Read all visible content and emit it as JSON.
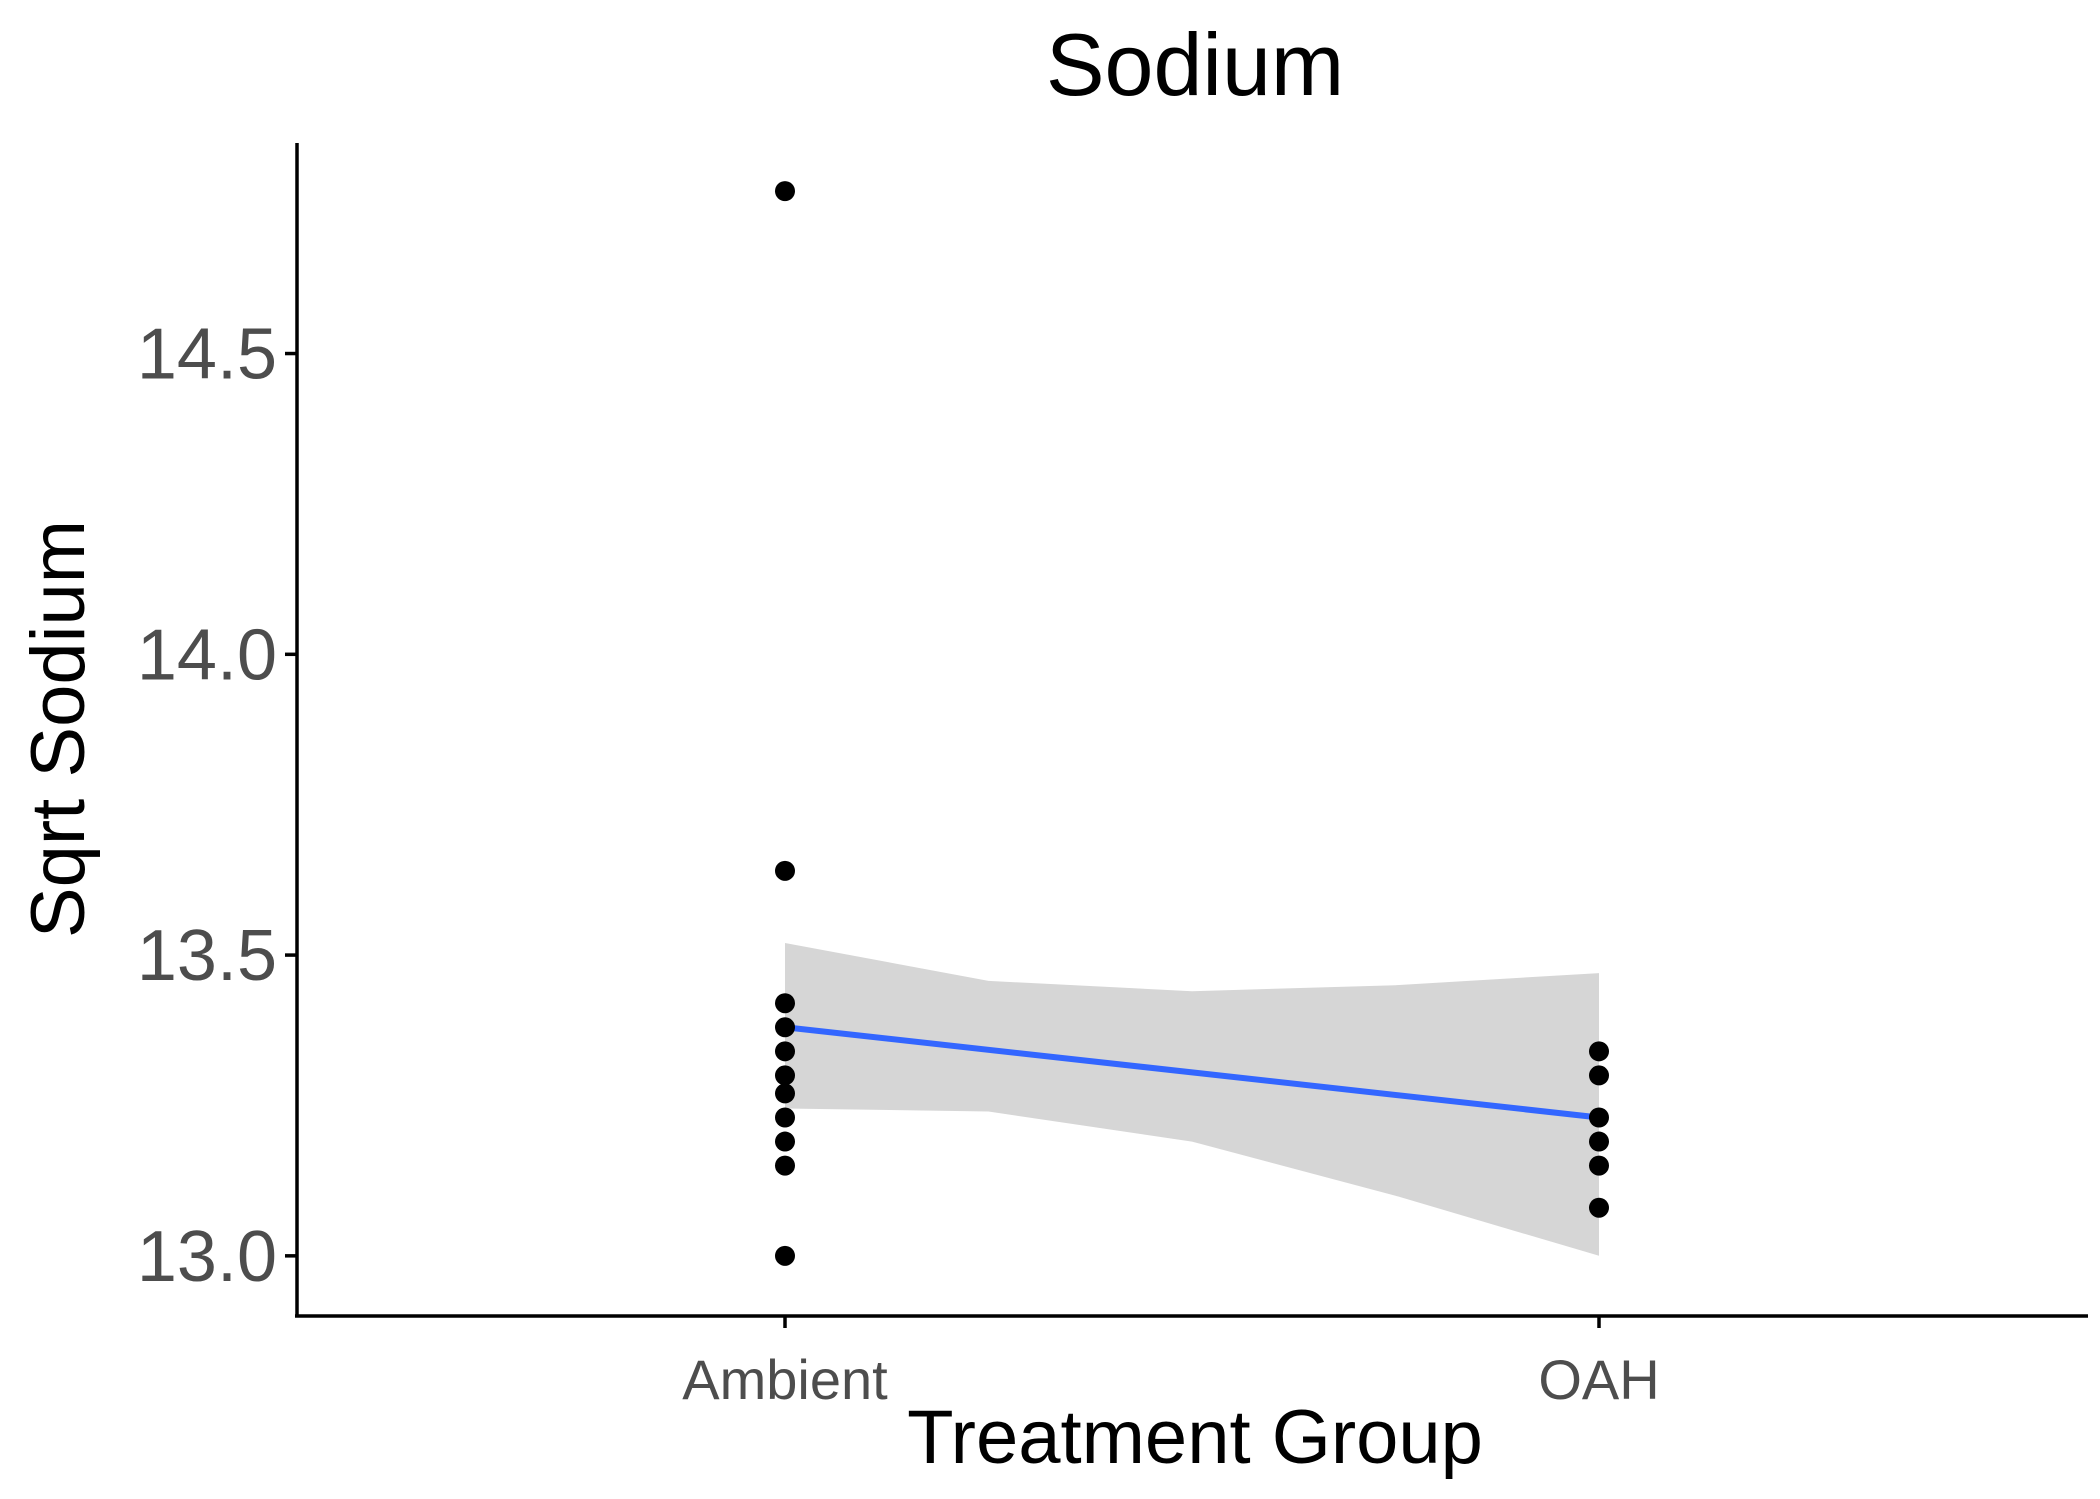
{
  "chart_data": {
    "type": "scatter",
    "title": "Sodium",
    "xlabel": "Treatment Group",
    "ylabel": "Sqrt Sodium",
    "categories": [
      "Ambient",
      "OAH"
    ],
    "ylim": [
      12.9,
      14.85
    ],
    "yticks": [
      13.0,
      13.5,
      14.0,
      14.5
    ],
    "ytick_labels": [
      "13.0",
      "13.5",
      "14.0",
      "14.5"
    ],
    "grid": false,
    "legend": "none",
    "points": [
      {
        "x": "Ambient",
        "y": 14.77
      },
      {
        "x": "Ambient",
        "y": 13.64
      },
      {
        "x": "Ambient",
        "y": 13.42
      },
      {
        "x": "Ambient",
        "y": 13.38
      },
      {
        "x": "Ambient",
        "y": 13.34
      },
      {
        "x": "Ambient",
        "y": 13.3
      },
      {
        "x": "Ambient",
        "y": 13.27
      },
      {
        "x": "Ambient",
        "y": 13.23
      },
      {
        "x": "Ambient",
        "y": 13.19
      },
      {
        "x": "Ambient",
        "y": 13.15
      },
      {
        "x": "Ambient",
        "y": 13.0
      },
      {
        "x": "OAH",
        "y": 13.34
      },
      {
        "x": "OAH",
        "y": 13.3
      },
      {
        "x": "OAH",
        "y": 13.23
      },
      {
        "x": "OAH",
        "y": 13.19
      },
      {
        "x": "OAH",
        "y": 13.15
      },
      {
        "x": "OAH",
        "y": 13.08
      }
    ],
    "fit_line": {
      "method": "linear",
      "color": "#3366ff",
      "values": [
        {
          "x": "Ambient",
          "y": 13.38
        },
        {
          "x": "OAH",
          "y": 13.23
        }
      ]
    },
    "confidence_band": {
      "color": "#d6d6d6",
      "upper": [
        {
          "t": 0.0,
          "y": 13.52
        },
        {
          "t": 0.25,
          "y": 13.457
        },
        {
          "t": 0.5,
          "y": 13.44
        },
        {
          "t": 0.75,
          "y": 13.45
        },
        {
          "t": 1.0,
          "y": 13.47
        }
      ],
      "lower": [
        {
          "t": 0.0,
          "y": 13.245
        },
        {
          "t": 0.25,
          "y": 13.24
        },
        {
          "t": 0.5,
          "y": 13.19
        },
        {
          "t": 0.75,
          "y": 13.1
        },
        {
          "t": 1.0,
          "y": 13.0
        }
      ]
    },
    "point_color": "#000000"
  }
}
